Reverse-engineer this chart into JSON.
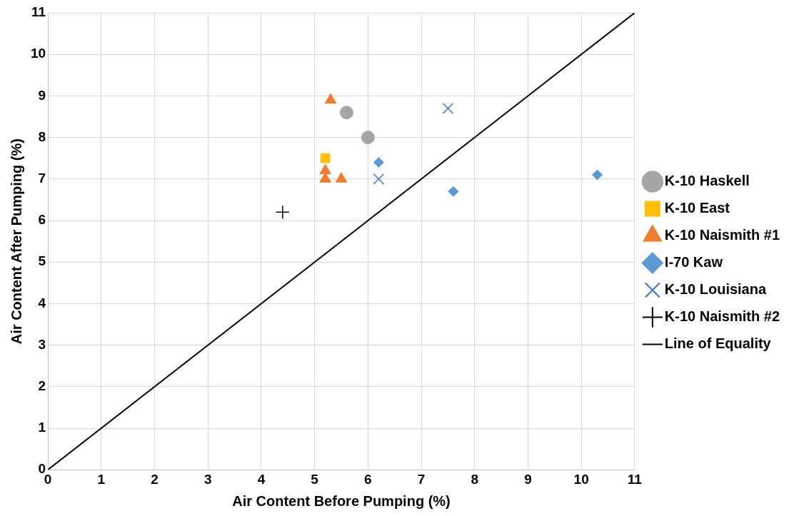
{
  "chart_data": {
    "type": "scatter",
    "xlabel": "Air Content Before Pumping (%)",
    "ylabel": "Air Content After Pumping (%)",
    "xlim": [
      0,
      11
    ],
    "xticks": [
      0,
      1,
      2,
      3,
      4,
      5,
      6,
      7,
      8,
      9,
      10,
      11
    ],
    "ylim": [
      0,
      11
    ],
    "yticks": [
      0,
      1,
      2,
      3,
      4,
      5,
      6,
      7,
      8,
      9,
      10,
      11
    ],
    "grid": true,
    "legend": "right",
    "series": [
      {
        "name": "K-10 Haskell",
        "color": "#a5a5a5",
        "marker": "circle",
        "x": [
          5.6,
          6.0
        ],
        "values": [
          8.6,
          8.0
        ]
      },
      {
        "name": "K-10 East",
        "color": "#ffc000",
        "marker": "square",
        "x": [
          5.2
        ],
        "values": [
          7.5
        ]
      },
      {
        "name": "K-10 Naismith #1",
        "color": "#ed7d31",
        "marker": "triangle",
        "x": [
          5.3,
          5.2,
          5.2,
          5.5
        ],
        "values": [
          8.9,
          7.2,
          7.0,
          7.0
        ]
      },
      {
        "name": "I-70 Kaw",
        "color": "#5b9bd5",
        "marker": "diamond",
        "x": [
          6.2,
          7.6,
          10.3
        ],
        "values": [
          7.4,
          6.7,
          7.1
        ]
      },
      {
        "name": "K-10 Louisiana",
        "color": "#4472c4",
        "marker": "x",
        "x": [
          6.2,
          7.5
        ],
        "values": [
          7.0,
          8.7
        ]
      },
      {
        "name": "K-10 Naismith #2",
        "color": "#000000",
        "marker": "cross",
        "x": [
          4.4
        ],
        "values": [
          6.2
        ]
      },
      {
        "name": "Line of Equality",
        "type": "line",
        "color": "#000000",
        "marker": "none",
        "x": [
          0,
          11
        ],
        "values": [
          0,
          11
        ]
      }
    ]
  }
}
